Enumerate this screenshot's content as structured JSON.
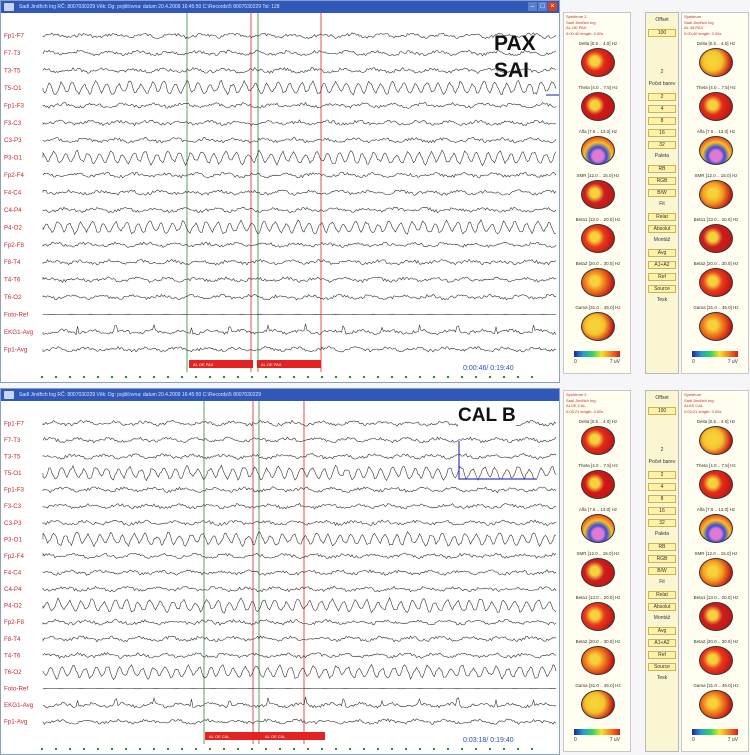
{
  "overlays": {
    "top_label_line1": "PAX",
    "top_label_line2": "SAI",
    "bottom_label": "CAL B"
  },
  "windows": [
    {
      "title": "Sadl Jindřich Ing   RČ: 8007030229   Věk:   Dg:   pojišťovna:   datum 20.4.2009  16:45:50   C:\\Records\\5 8007030229   Tsl: 128",
      "time": "0:00:46/ 0:19:40",
      "markers": [
        "AL OE PAX",
        "AL OE PAX"
      ],
      "channels": [
        "Fp1-F7",
        "F7-T3",
        "T3-T5",
        "T5-O1",
        "Fp1-F3",
        "F3-C3",
        "C3-P3",
        "P3-O1",
        "Fp2-F4",
        "F4-C4",
        "C4-P4",
        "P4-O2",
        "Fp2-F8",
        "F8-T4",
        "T4-T6",
        "T6-O2",
        "Foto-Ref",
        "EKG1-Avg",
        "Fp1-Avg"
      ]
    },
    {
      "title": "Sadl Jindřich Ing   RČ: 8007030229   Věk:   Dg:   pojišťovna:   datum 20.4.2009  16:45:50   C:\\Records\\5 8007030229",
      "time": "0:03:18/ 0:19:40",
      "markers": [
        "AL OE CAL",
        "AL OE CAL"
      ],
      "channels": [
        "Fp1-F7",
        "F7-T3",
        "T3-T5",
        "T5-O1",
        "Fp1-F3",
        "F3-C3",
        "C3-P3",
        "P3-O1",
        "Fp2-F4",
        "F4-C4",
        "C4-P4",
        "P4-O2",
        "Fp2-F8",
        "F8-T4",
        "T4-T6",
        "T6-O2",
        "Foto-Ref",
        "EKG1-Avg",
        "Fp1-Avg"
      ]
    }
  ],
  "maps_panels": [
    {
      "header": "Spektrum 2",
      "sub": "Sadl Jindřich Ing",
      "cond": "AL OE PAX",
      "info": "0:00:40  length: 0.00s"
    },
    {
      "header": "Spektrum",
      "sub": "Sadl Jindřich Ing",
      "cond": "AL 45 PAX",
      "info": "0:00:40  length: 0.00s"
    },
    {
      "header": "Spektrum 2",
      "sub": "Sadl Jindřich Ing",
      "cond": "ALOE CAL",
      "info": "0:03:21  length: 0.00s"
    },
    {
      "header": "Spektrum",
      "sub": "Sadl Jindřich Ing",
      "cond": "ALAS CAL",
      "info": "0:03:21  length: 0.00s"
    }
  ],
  "bands": [
    "Delta [0.5 .. 4.0] Hz",
    "Theta [4.0 .. 7.5] Hz",
    "Alfa [7.5 .. 13.0] Hz",
    "SMR [12.0 .. 15.0] Hz",
    "Beta1 [13.0 .. 20.0] Hz",
    "Beta2 [20.0 .. 30.0] Hz",
    "Gama [31.0 .. 45.0] Hz"
  ],
  "colorbar": {
    "min": "0",
    "max": "7 uV"
  },
  "controls": {
    "offset_label": "Offset",
    "offset_value": "100",
    "offset_mid": "2",
    "pocet_label": "Počet barev",
    "pocet_values": [
      "2",
      "4",
      "8",
      "16",
      "32"
    ],
    "paleta_label": "Paleta",
    "palettes": [
      "RB",
      "RGB",
      "B/W"
    ],
    "fit_label": "Fit",
    "fit_options": [
      "Relat",
      "Absolut"
    ],
    "montage_label": "Montáž",
    "montages": [
      "Avg",
      "A1+A2",
      "Ref",
      "Source"
    ],
    "logo": "Tesk"
  },
  "colors": {
    "title_bar": "#2f58b8",
    "trace": "#222222",
    "channel_label": "#c42a2a",
    "marker_red": "#e52222",
    "marker_green": "#2a8f2a",
    "time_text": "#2f4fb0"
  }
}
